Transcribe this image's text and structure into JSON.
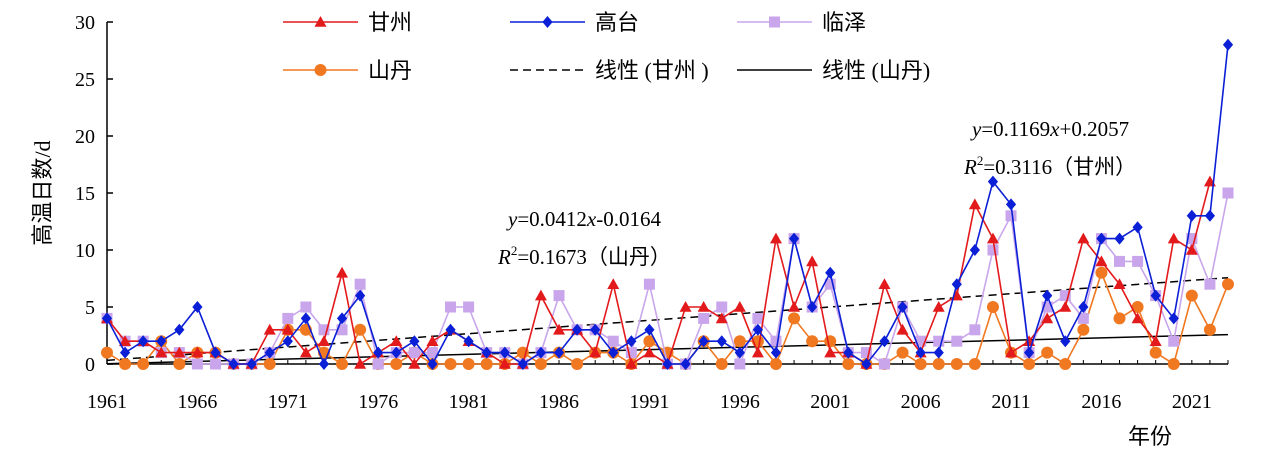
{
  "chart_data": {
    "type": "line",
    "xlabel": "年份",
    "ylabel": "高温日数/d",
    "xlim": [
      1961,
      2023
    ],
    "ylim": [
      0,
      30
    ],
    "x_ticks": [
      "1961",
      "1966",
      "1971",
      "1976",
      "1981",
      "1986",
      "1991",
      "1996",
      "2001",
      "2006",
      "2011",
      "2016",
      "2021"
    ],
    "y_ticks": [
      "0",
      "5",
      "10",
      "15",
      "20",
      "25",
      "30"
    ],
    "x": [
      1961,
      1962,
      1963,
      1964,
      1965,
      1966,
      1967,
      1968,
      1969,
      1970,
      1971,
      1972,
      1973,
      1974,
      1975,
      1976,
      1977,
      1978,
      1979,
      1980,
      1981,
      1982,
      1983,
      1984,
      1985,
      1986,
      1987,
      1988,
      1989,
      1990,
      1991,
      1992,
      1993,
      1994,
      1995,
      1996,
      1997,
      1998,
      1999,
      2000,
      2001,
      2002,
      2003,
      2004,
      2005,
      2006,
      2007,
      2008,
      2009,
      2010,
      2011,
      2012,
      2013,
      2014,
      2015,
      2016,
      2017,
      2018,
      2019,
      2020,
      2021,
      2022,
      2023
    ],
    "series": [
      {
        "name": "甘州",
        "color": "#e31a1c",
        "marker": "triangle",
        "values": [
          4,
          2,
          2,
          1,
          1,
          1,
          1,
          0,
          0,
          3,
          3,
          1,
          2,
          8,
          0,
          1,
          2,
          0,
          2,
          3,
          2,
          1,
          0,
          0,
          6,
          3,
          3,
          1,
          7,
          0,
          1,
          0,
          5,
          5,
          4,
          5,
          1,
          11,
          5,
          9,
          1,
          1,
          0,
          7,
          3,
          1,
          5,
          6,
          14,
          11,
          1,
          2,
          4,
          5,
          11,
          9,
          7,
          4,
          2,
          11,
          10,
          16,
          null
        ]
      },
      {
        "name": "高台",
        "color": "#0b1fd6",
        "marker": "diamond",
        "values": [
          4,
          1,
          2,
          2,
          3,
          5,
          1,
          0,
          0,
          1,
          2,
          4,
          0,
          4,
          6,
          1,
          1,
          2,
          0,
          3,
          2,
          1,
          1,
          0,
          1,
          1,
          3,
          3,
          1,
          2,
          3,
          0,
          0,
          2,
          2,
          1,
          3,
          1,
          11,
          5,
          8,
          1,
          0,
          2,
          5,
          1,
          1,
          7,
          10,
          16,
          14,
          1,
          6,
          2,
          5,
          11,
          11,
          12,
          6,
          4,
          13,
          13,
          28
        ]
      },
      {
        "name": "临泽",
        "color": "#c9a6ec",
        "marker": "square",
        "values": [
          4,
          2,
          2,
          1,
          1,
          0,
          0,
          0,
          0,
          1,
          4,
          5,
          3,
          3,
          7,
          0,
          1,
          1,
          1,
          5,
          5,
          1,
          1,
          0,
          1,
          6,
          3,
          3,
          2,
          1,
          7,
          0,
          0,
          4,
          5,
          0,
          4,
          2,
          11,
          5,
          7,
          1,
          1,
          0,
          5,
          2,
          2,
          2,
          3,
          10,
          13,
          1,
          5,
          6,
          4,
          11,
          9,
          9,
          6,
          2,
          11,
          7,
          15
        ]
      },
      {
        "name": "山丹",
        "color": "#f07820",
        "marker": "circle",
        "values": [
          1,
          0,
          0,
          2,
          0,
          1,
          1,
          0,
          0,
          0,
          3,
          3,
          1,
          0,
          3,
          0,
          0,
          1,
          0,
          0,
          0,
          0,
          0,
          1,
          0,
          1,
          0,
          1,
          1,
          0,
          2,
          1,
          0,
          2,
          0,
          2,
          2,
          0,
          4,
          2,
          2,
          0,
          0,
          0,
          1,
          0,
          0,
          0,
          0,
          5,
          1,
          0,
          1,
          0,
          3,
          8,
          4,
          5,
          1,
          0,
          6,
          3,
          7
        ]
      }
    ],
    "trendlines": [
      {
        "name": "线性 (甘州 )",
        "slope": 0.1169,
        "intercept": 0.2057,
        "equation": "y=0.1169x+0.2057",
        "r2": "R2=0.3116（甘州）",
        "style": "dashed"
      },
      {
        "name": "线性 (山丹)",
        "slope": 0.0412,
        "intercept": -0.0164,
        "equation": "y=0.0412x-0.0164",
        "r2": "R2=0.1673（山丹）",
        "style": "solid"
      }
    ],
    "annotations": {
      "ganzhou_eq_y": "y",
      "ganzhou_eq_rest": "=0.1169",
      "ganzhou_eq_x": "x",
      "ganzhou_eq_tail": "+0.2057",
      "ganzhou_r": "R",
      "ganzhou_sup": "2",
      "ganzhou_r_tail": "=0.3116（甘州）",
      "shandan_eq_y": "y",
      "shandan_eq_rest": "=0.0412",
      "shandan_eq_x": "x",
      "shandan_eq_tail": "-0.0164",
      "shandan_r": "R",
      "shandan_sup": "2",
      "shandan_r_tail": "=0.1673（山丹）"
    },
    "legend": [
      "甘州",
      "高台",
      "临泽",
      "山丹",
      "线性 (甘州 )",
      "线性 (山丹)"
    ],
    "legend_position": "top",
    "grid": false
  }
}
